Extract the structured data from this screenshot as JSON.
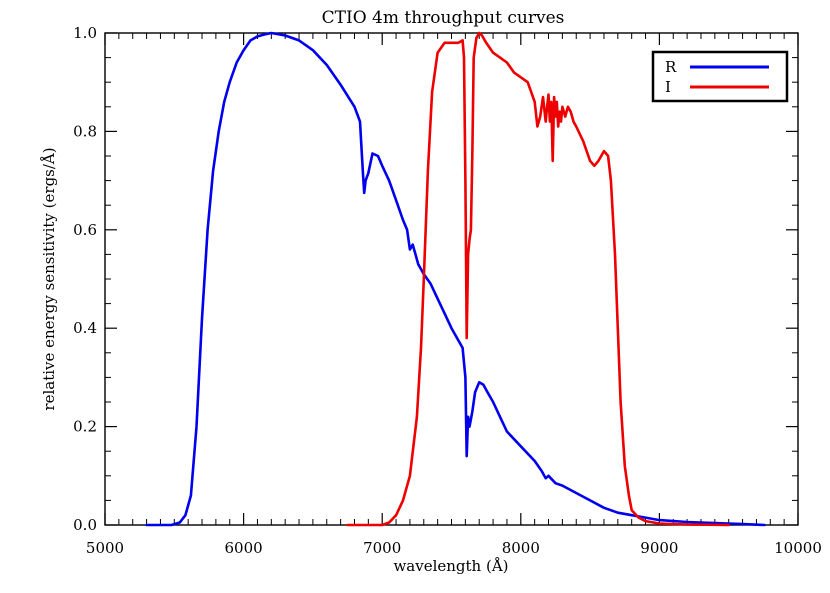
{
  "chart_data": {
    "type": "line",
    "title": "CTIO 4m throughput curves",
    "xlabel": "wavelength (Å)",
    "ylabel": "relative energy sensitivity (ergs/Å)",
    "xlim": [
      5000,
      10000
    ],
    "ylim": [
      0.0,
      1.0
    ],
    "xticks": [
      5000,
      6000,
      7000,
      8000,
      9000,
      10000
    ],
    "xtick_labels": [
      "5000",
      "6000",
      "7000",
      "8000",
      "9000",
      "10000"
    ],
    "yticks": [
      0.0,
      0.2,
      0.4,
      0.6,
      0.8,
      1.0
    ],
    "ytick_labels": [
      "0.0",
      "0.2",
      "0.4",
      "0.6",
      "0.8",
      "1.0"
    ],
    "grid": false,
    "legend_position": "top-right",
    "series": [
      {
        "name": "R",
        "color": "#0000ee",
        "x": [
          5300,
          5480,
          5540,
          5580,
          5620,
          5660,
          5700,
          5740,
          5780,
          5820,
          5860,
          5900,
          5950,
          6000,
          6050,
          6100,
          6150,
          6200,
          6300,
          6400,
          6500,
          6600,
          6700,
          6800,
          6840,
          6860,
          6870,
          6880,
          6900,
          6930,
          6970,
          7000,
          7050,
          7100,
          7150,
          7180,
          7200,
          7220,
          7240,
          7260,
          7300,
          7350,
          7400,
          7450,
          7500,
          7540,
          7580,
          7600,
          7610,
          7620,
          7630,
          7650,
          7670,
          7700,
          7730,
          7760,
          7800,
          7850,
          7900,
          8000,
          8100,
          8150,
          8180,
          8200,
          8250,
          8300,
          8400,
          8500,
          8600,
          8700,
          8800,
          8900,
          9000,
          9200,
          9400,
          9600,
          9760
        ],
        "y": [
          0.0,
          0.0,
          0.005,
          0.02,
          0.06,
          0.2,
          0.42,
          0.6,
          0.72,
          0.8,
          0.86,
          0.9,
          0.94,
          0.965,
          0.985,
          0.993,
          0.997,
          1.0,
          0.995,
          0.985,
          0.965,
          0.935,
          0.895,
          0.85,
          0.82,
          0.72,
          0.675,
          0.7,
          0.715,
          0.755,
          0.75,
          0.73,
          0.7,
          0.66,
          0.62,
          0.6,
          0.56,
          0.57,
          0.55,
          0.53,
          0.51,
          0.49,
          0.46,
          0.43,
          0.4,
          0.38,
          0.36,
          0.3,
          0.14,
          0.22,
          0.2,
          0.23,
          0.27,
          0.29,
          0.285,
          0.27,
          0.25,
          0.22,
          0.19,
          0.16,
          0.13,
          0.11,
          0.095,
          0.1,
          0.085,
          0.08,
          0.065,
          0.05,
          0.035,
          0.025,
          0.02,
          0.015,
          0.01,
          0.006,
          0.004,
          0.002,
          0.0
        ]
      },
      {
        "name": "I",
        "color": "#ee0000",
        "x": [
          6750,
          7000,
          7050,
          7100,
          7150,
          7200,
          7250,
          7280,
          7300,
          7330,
          7360,
          7400,
          7450,
          7500,
          7550,
          7580,
          7590,
          7600,
          7610,
          7620,
          7630,
          7640,
          7650,
          7660,
          7680,
          7700,
          7720,
          7750,
          7800,
          7850,
          7900,
          7950,
          8000,
          8050,
          8100,
          8120,
          8140,
          8160,
          8180,
          8190,
          8200,
          8210,
          8220,
          8230,
          8240,
          8250,
          8260,
          8270,
          8280,
          8290,
          8300,
          8320,
          8340,
          8360,
          8380,
          8400,
          8450,
          8500,
          8530,
          8560,
          8600,
          8630,
          8650,
          8680,
          8700,
          8720,
          8750,
          8780,
          8800,
          8850,
          8900,
          9000,
          9200,
          9500
        ],
        "y": [
          0.0,
          0.0,
          0.005,
          0.02,
          0.05,
          0.1,
          0.22,
          0.36,
          0.5,
          0.72,
          0.88,
          0.96,
          0.98,
          0.98,
          0.98,
          0.985,
          0.95,
          0.7,
          0.38,
          0.55,
          0.58,
          0.6,
          0.75,
          0.95,
          0.99,
          1.0,
          0.995,
          0.98,
          0.96,
          0.95,
          0.94,
          0.92,
          0.91,
          0.9,
          0.86,
          0.81,
          0.83,
          0.87,
          0.82,
          0.85,
          0.875,
          0.82,
          0.86,
          0.74,
          0.87,
          0.83,
          0.86,
          0.81,
          0.84,
          0.82,
          0.85,
          0.83,
          0.85,
          0.84,
          0.82,
          0.81,
          0.78,
          0.74,
          0.73,
          0.74,
          0.76,
          0.75,
          0.7,
          0.55,
          0.4,
          0.25,
          0.12,
          0.06,
          0.03,
          0.015,
          0.008,
          0.003,
          0.001,
          0.0
        ]
      }
    ]
  }
}
